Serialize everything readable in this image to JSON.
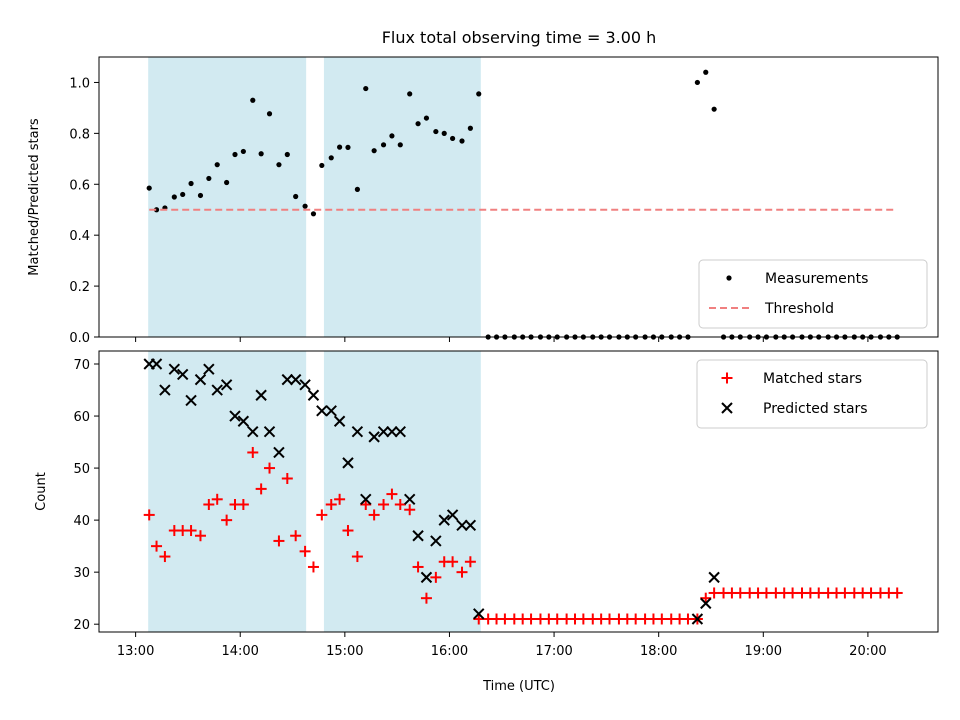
{
  "chart_data": {
    "type": "scatter",
    "title": "Flux total observing time = 3.00 h",
    "xlabel": "Time (UTC)",
    "x_tick_labels": [
      "13:00",
      "14:00",
      "15:00",
      "16:00",
      "17:00",
      "18:00",
      "19:00",
      "20:00"
    ],
    "x_range_hours": [
      12.65,
      20.67
    ],
    "shaded_intervals": [
      [
        13.12,
        14.63
      ],
      [
        14.8,
        16.3
      ]
    ],
    "shade_color": "#add8e6",
    "panels": [
      {
        "ylabel": "Matched/Predicted stars",
        "ylim": [
          0,
          1.1
        ],
        "y_tick_labels": [
          "0.0",
          "0.2",
          "0.4",
          "0.6",
          "0.8",
          "1.0"
        ],
        "legend": {
          "position": "lower right",
          "entries": [
            "Measurements",
            "Threshold"
          ]
        },
        "series": [
          {
            "name": "Measurements",
            "type": "scatter",
            "marker": "dot",
            "color": "#000000",
            "points": [
              [
                13.13,
                0.585
              ],
              [
                13.2,
                0.5
              ],
              [
                13.28,
                0.507
              ],
              [
                13.37,
                0.55
              ],
              [
                13.45,
                0.56
              ],
              [
                13.53,
                0.603
              ],
              [
                13.62,
                0.556
              ],
              [
                13.7,
                0.623
              ],
              [
                13.78,
                0.677
              ],
              [
                13.87,
                0.607
              ],
              [
                13.95,
                0.717
              ],
              [
                14.03,
                0.729
              ],
              [
                14.12,
                0.93
              ],
              [
                14.2,
                0.72
              ],
              [
                14.28,
                0.877
              ],
              [
                14.37,
                0.677
              ],
              [
                14.45,
                0.717
              ],
              [
                14.53,
                0.552
              ],
              [
                14.62,
                0.514
              ],
              [
                14.7,
                0.484
              ],
              [
                14.78,
                0.674
              ],
              [
                14.87,
                0.704
              ],
              [
                14.95,
                0.746
              ],
              [
                15.03,
                0.745
              ],
              [
                15.12,
                0.58
              ],
              [
                15.2,
                0.976
              ],
              [
                15.28,
                0.732
              ],
              [
                15.37,
                0.755
              ],
              [
                15.45,
                0.79
              ],
              [
                15.53,
                0.755
              ],
              [
                15.62,
                0.955
              ],
              [
                15.7,
                0.838
              ],
              [
                15.78,
                0.86
              ],
              [
                15.87,
                0.807
              ],
              [
                15.95,
                0.8
              ],
              [
                16.03,
                0.78
              ],
              [
                16.12,
                0.77
              ],
              [
                16.2,
                0.82
              ],
              [
                16.28,
                0.955
              ],
              [
                16.37,
                0.0
              ],
              [
                16.45,
                0.0
              ],
              [
                16.53,
                0.0
              ],
              [
                16.62,
                0.0
              ],
              [
                16.7,
                0.0
              ],
              [
                16.78,
                0.0
              ],
              [
                16.87,
                0.0
              ],
              [
                16.95,
                0.0
              ],
              [
                17.03,
                0.0
              ],
              [
                17.12,
                0.0
              ],
              [
                17.2,
                0.0
              ],
              [
                17.28,
                0.0
              ],
              [
                17.37,
                0.0
              ],
              [
                17.45,
                0.0
              ],
              [
                17.53,
                0.0
              ],
              [
                17.62,
                0.0
              ],
              [
                17.7,
                0.0
              ],
              [
                17.78,
                0.0
              ],
              [
                17.87,
                0.0
              ],
              [
                17.95,
                0.0
              ],
              [
                18.03,
                0.0
              ],
              [
                18.12,
                0.0
              ],
              [
                18.2,
                0.0
              ],
              [
                18.28,
                0.0
              ],
              [
                18.37,
                1.0
              ],
              [
                18.45,
                1.04
              ],
              [
                18.53,
                0.895
              ],
              [
                18.62,
                0.0
              ],
              [
                18.7,
                0.0
              ],
              [
                18.78,
                0.0
              ],
              [
                18.87,
                0.0
              ],
              [
                18.95,
                0.0
              ],
              [
                19.03,
                0.0
              ],
              [
                19.12,
                0.0
              ],
              [
                19.2,
                0.0
              ],
              [
                19.28,
                0.0
              ],
              [
                19.37,
                0.0
              ],
              [
                19.45,
                0.0
              ],
              [
                19.53,
                0.0
              ],
              [
                19.62,
                0.0
              ],
              [
                19.7,
                0.0
              ],
              [
                19.78,
                0.0
              ],
              [
                19.87,
                0.0
              ],
              [
                19.95,
                0.0
              ],
              [
                20.03,
                0.0
              ],
              [
                20.12,
                0.0
              ],
              [
                20.2,
                0.0
              ],
              [
                20.28,
                0.0
              ]
            ]
          },
          {
            "name": "Threshold",
            "type": "line",
            "style": "dashed",
            "color": "#f08080",
            "points": [
              [
                13.13,
                0.5
              ],
              [
                20.28,
                0.5
              ]
            ]
          }
        ]
      },
      {
        "ylabel": "Count",
        "ylim": [
          18.5,
          72.5
        ],
        "y_tick_labels": [
          "20",
          "30",
          "40",
          "50",
          "60",
          "70"
        ],
        "legend": {
          "position": "upper right",
          "entries": [
            "Matched stars",
            "Predicted stars"
          ]
        },
        "series": [
          {
            "name": "Matched stars",
            "type": "scatter",
            "marker": "plus",
            "color": "#ff0000",
            "points": [
              [
                13.13,
                41
              ],
              [
                13.2,
                35
              ],
              [
                13.28,
                33
              ],
              [
                13.37,
                38
              ],
              [
                13.45,
                38
              ],
              [
                13.53,
                38
              ],
              [
                13.62,
                37
              ],
              [
                13.7,
                43
              ],
              [
                13.78,
                44
              ],
              [
                13.87,
                40
              ],
              [
                13.95,
                43
              ],
              [
                14.03,
                43
              ],
              [
                14.12,
                53
              ],
              [
                14.2,
                46
              ],
              [
                14.28,
                50
              ],
              [
                14.37,
                36
              ],
              [
                14.45,
                48
              ],
              [
                14.53,
                37
              ],
              [
                14.62,
                34
              ],
              [
                14.7,
                31
              ],
              [
                14.78,
                41
              ],
              [
                14.87,
                43
              ],
              [
                14.95,
                44
              ],
              [
                15.03,
                38
              ],
              [
                15.12,
                33
              ],
              [
                15.2,
                43
              ],
              [
                15.28,
                41
              ],
              [
                15.37,
                43
              ],
              [
                15.45,
                45
              ],
              [
                15.53,
                43
              ],
              [
                15.62,
                42
              ],
              [
                15.7,
                31
              ],
              [
                15.78,
                25
              ],
              [
                15.87,
                29
              ],
              [
                15.95,
                32
              ],
              [
                16.03,
                32
              ],
              [
                16.12,
                30
              ],
              [
                16.2,
                32
              ],
              [
                16.28,
                21
              ],
              [
                16.37,
                21
              ],
              [
                16.45,
                21
              ],
              [
                16.53,
                21
              ],
              [
                16.62,
                21
              ],
              [
                16.7,
                21
              ],
              [
                16.78,
                21
              ],
              [
                16.87,
                21
              ],
              [
                16.95,
                21
              ],
              [
                17.03,
                21
              ],
              [
                17.12,
                21
              ],
              [
                17.2,
                21
              ],
              [
                17.28,
                21
              ],
              [
                17.37,
                21
              ],
              [
                17.45,
                21
              ],
              [
                17.53,
                21
              ],
              [
                17.62,
                21
              ],
              [
                17.7,
                21
              ],
              [
                17.78,
                21
              ],
              [
                17.87,
                21
              ],
              [
                17.95,
                21
              ],
              [
                18.03,
                21
              ],
              [
                18.12,
                21
              ],
              [
                18.2,
                21
              ],
              [
                18.28,
                21
              ],
              [
                18.37,
                21
              ],
              [
                18.45,
                25
              ],
              [
                18.53,
                26
              ],
              [
                18.62,
                26
              ],
              [
                18.7,
                26
              ],
              [
                18.78,
                26
              ],
              [
                18.87,
                26
              ],
              [
                18.95,
                26
              ],
              [
                19.03,
                26
              ],
              [
                19.12,
                26
              ],
              [
                19.2,
                26
              ],
              [
                19.28,
                26
              ],
              [
                19.37,
                26
              ],
              [
                19.45,
                26
              ],
              [
                19.53,
                26
              ],
              [
                19.62,
                26
              ],
              [
                19.7,
                26
              ],
              [
                19.78,
                26
              ],
              [
                19.87,
                26
              ],
              [
                19.95,
                26
              ],
              [
                20.03,
                26
              ],
              [
                20.12,
                26
              ],
              [
                20.2,
                26
              ],
              [
                20.28,
                26
              ]
            ]
          },
          {
            "name": "Predicted stars",
            "type": "scatter",
            "marker": "x",
            "color": "#000000",
            "points": [
              [
                13.13,
                70
              ],
              [
                13.2,
                70
              ],
              [
                13.28,
                65
              ],
              [
                13.37,
                69
              ],
              [
                13.45,
                68
              ],
              [
                13.53,
                63
              ],
              [
                13.62,
                67
              ],
              [
                13.7,
                69
              ],
              [
                13.78,
                65
              ],
              [
                13.87,
                66
              ],
              [
                13.95,
                60
              ],
              [
                14.03,
                59
              ],
              [
                14.12,
                57
              ],
              [
                14.2,
                64
              ],
              [
                14.28,
                57
              ],
              [
                14.37,
                53
              ],
              [
                14.45,
                67
              ],
              [
                14.53,
                67
              ],
              [
                14.62,
                66
              ],
              [
                14.7,
                64
              ],
              [
                14.78,
                61
              ],
              [
                14.87,
                61
              ],
              [
                14.95,
                59
              ],
              [
                15.03,
                51
              ],
              [
                15.12,
                57
              ],
              [
                15.2,
                44
              ],
              [
                15.28,
                56
              ],
              [
                15.37,
                57
              ],
              [
                15.45,
                57
              ],
              [
                15.53,
                57
              ],
              [
                15.62,
                44
              ],
              [
                15.7,
                37
              ],
              [
                15.78,
                29
              ],
              [
                15.87,
                36
              ],
              [
                15.95,
                40
              ],
              [
                16.03,
                41
              ],
              [
                16.12,
                39
              ],
              [
                16.2,
                39
              ],
              [
                16.28,
                22
              ],
              [
                18.37,
                21
              ],
              [
                18.45,
                24
              ],
              [
                18.53,
                29
              ]
            ]
          }
        ]
      }
    ]
  }
}
